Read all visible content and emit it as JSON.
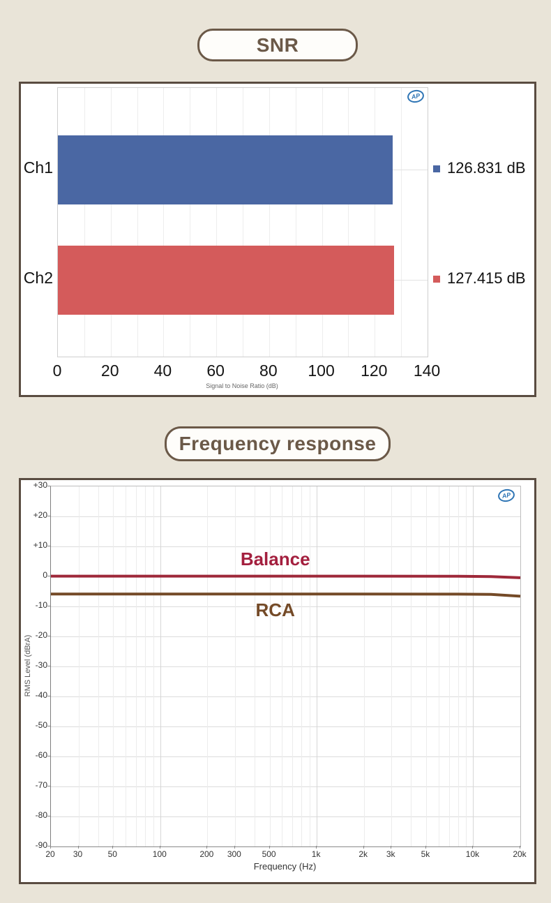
{
  "page_bg": "#e9e4d8",
  "logo": "AP",
  "sections": [
    {
      "title": "SNR"
    },
    {
      "title": "Frequency response"
    }
  ],
  "chart_data": [
    {
      "type": "bar",
      "orientation": "horizontal",
      "title": "SNR",
      "categories": [
        "Ch1",
        "Ch2"
      ],
      "values": [
        126.831,
        127.415
      ],
      "value_labels": [
        "126.831 dB",
        "127.415 dB"
      ],
      "bar_colors": [
        "#4a67a3",
        "#d45b5b"
      ],
      "xlabel": "Signal to Noise Ratio (dB)",
      "xlim": [
        0,
        140
      ],
      "xticks": [
        0,
        20,
        40,
        60,
        80,
        100,
        120,
        140
      ],
      "grid_minor_step": 10,
      "grid": true,
      "legend_position": "right"
    },
    {
      "type": "line",
      "title": "Frequency response",
      "x_scale": "log",
      "xlabel": "Frequency (Hz)",
      "ylabel": "RMS Level (dBrA)",
      "xlim": [
        20,
        20000
      ],
      "ylim": [
        -90,
        30
      ],
      "grid": true,
      "yticks": [
        {
          "v": 30,
          "label": "+30"
        },
        {
          "v": 20,
          "label": "+20"
        },
        {
          "v": 10,
          "label": "+10"
        },
        {
          "v": 0,
          "label": "0"
        },
        {
          "v": -10,
          "label": "-10"
        },
        {
          "v": -20,
          "label": "-20"
        },
        {
          "v": -30,
          "label": "-30"
        },
        {
          "v": -40,
          "label": "-40"
        },
        {
          "v": -50,
          "label": "-50"
        },
        {
          "v": -60,
          "label": "-60"
        },
        {
          "v": -70,
          "label": "-70"
        },
        {
          "v": -80,
          "label": "-80"
        },
        {
          "v": -90,
          "label": "-90"
        }
      ],
      "xticks": [
        {
          "v": 20,
          "label": "20"
        },
        {
          "v": 30,
          "label": "30"
        },
        {
          "v": 50,
          "label": "50"
        },
        {
          "v": 100,
          "label": "100"
        },
        {
          "v": 200,
          "label": "200"
        },
        {
          "v": 300,
          "label": "300"
        },
        {
          "v": 500,
          "label": "500"
        },
        {
          "v": 1000,
          "label": "1k"
        },
        {
          "v": 2000,
          "label": "2k"
        },
        {
          "v": 3000,
          "label": "3k"
        },
        {
          "v": 5000,
          "label": "5k"
        },
        {
          "v": 10000,
          "label": "10k"
        },
        {
          "v": 20000,
          "label": "20k"
        }
      ],
      "series": [
        {
          "name": "Balance",
          "color": "#9e2839",
          "label_color": "#a31f3e",
          "label_side": "above",
          "points": [
            [
              20,
              0.1
            ],
            [
              1000,
              0.1
            ],
            [
              8000,
              0.05
            ],
            [
              13000,
              -0.05
            ],
            [
              20000,
              -0.45
            ]
          ]
        },
        {
          "name": "RCA",
          "color": "#744a27",
          "label_color": "#744a27",
          "label_side": "below",
          "points": [
            [
              20,
              -5.85
            ],
            [
              1000,
              -5.85
            ],
            [
              8000,
              -5.9
            ],
            [
              13000,
              -6.0
            ],
            [
              20000,
              -6.6
            ]
          ]
        }
      ]
    }
  ]
}
